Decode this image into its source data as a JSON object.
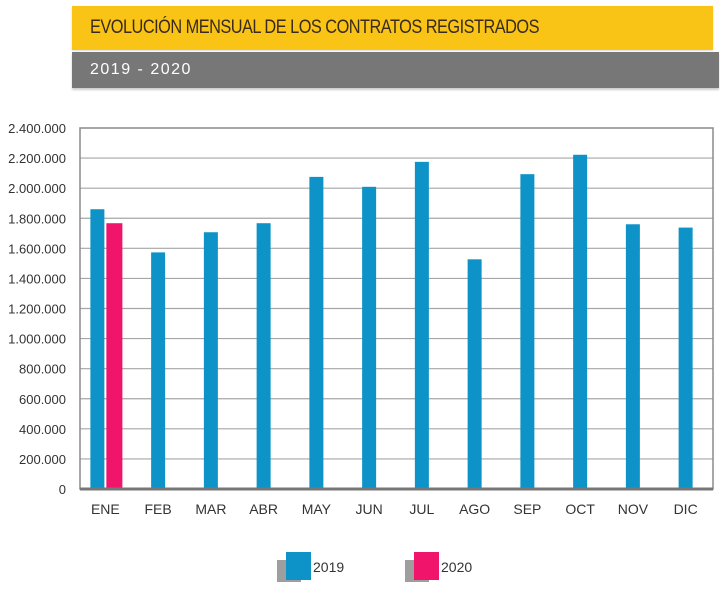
{
  "header": {
    "title": "EVOLUCIÓN MENSUAL DE LOS CONTRATOS REGISTRADOS",
    "subtitle": "2019 - 2020"
  },
  "colors": {
    "title_band": "#f9c416",
    "subtitle_band": "#777777",
    "series_2019": "#0e93c8",
    "series_2020": "#f0146a",
    "grid": "#a0a0a0"
  },
  "chart_data": {
    "type": "bar",
    "title": "EVOLUCIÓN MENSUAL DE LOS CONTRATOS REGISTRADOS",
    "subtitle": "2019 - 2020",
    "xlabel": "",
    "ylabel": "",
    "ylim": [
      0,
      2400000
    ],
    "yticks": [
      0,
      200000,
      400000,
      600000,
      800000,
      1000000,
      1200000,
      1400000,
      1600000,
      1800000,
      2000000,
      2200000,
      2400000
    ],
    "ytick_labels": [
      "0",
      "200.000",
      "400.000",
      "600.000",
      "800.000",
      "1.000.000",
      "1.200.000",
      "1.400.000",
      "1.600.000",
      "1.800.000",
      "2.000.000",
      "2.200.000",
      "2.400.000"
    ],
    "grid": true,
    "legend_position": "bottom-center",
    "categories": [
      "ENE",
      "FEB",
      "MAR",
      "ABR",
      "MAY",
      "JUN",
      "JUL",
      "AGO",
      "SEP",
      "OCT",
      "NOV",
      "DIC"
    ],
    "series": [
      {
        "name": "2019",
        "color": "#0e93c8",
        "values": [
          1860000,
          1573000,
          1707000,
          1767000,
          2075000,
          2009000,
          2175000,
          1527000,
          2093000,
          2222000,
          1760000,
          1738000
        ]
      },
      {
        "name": "2020",
        "color": "#f0146a",
        "values": [
          1767000,
          null,
          null,
          null,
          null,
          null,
          null,
          null,
          null,
          null,
          null,
          null
        ]
      }
    ]
  }
}
